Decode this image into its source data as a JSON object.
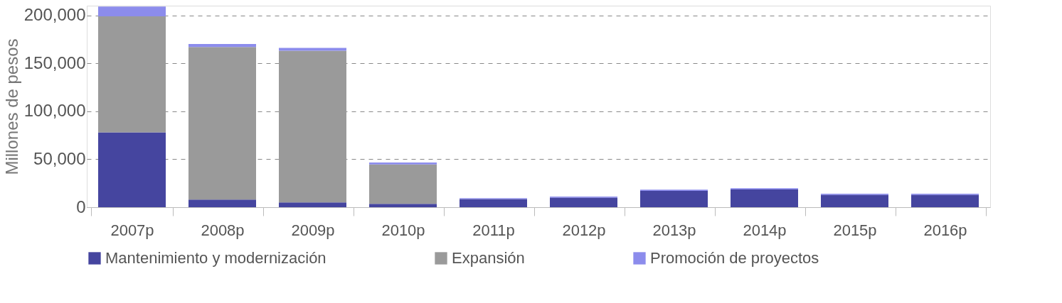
{
  "chart_data": {
    "type": "bar",
    "stacked": true,
    "ylabel": "Millones de pesos",
    "categories": [
      "2007p",
      "2008p",
      "2009p",
      "2010p",
      "2011p",
      "2012p",
      "2013p",
      "2014p",
      "2015p",
      "2016p"
    ],
    "series": [
      {
        "name": "Mantenimiento y modernización",
        "color": "#45459f",
        "values": [
          78000,
          8000,
          5000,
          3500,
          8500,
          10000,
          17000,
          18500,
          13000,
          13000
        ]
      },
      {
        "name": "Expansión",
        "color": "#9a9a9a",
        "values": [
          121000,
          159000,
          158000,
          41000,
          0,
          0,
          0,
          0,
          0,
          0
        ]
      },
      {
        "name": "Promoción de proyectos",
        "color": "#8c8cec",
        "values": [
          10000,
          3000,
          3000,
          2000,
          1000,
          1000,
          1300,
          1200,
          1000,
          1000
        ]
      }
    ],
    "ylim": [
      0,
      210000
    ],
    "yticks": [
      0,
      {
        "value": 50000,
        "label": "50,000"
      },
      {
        "value": 100000,
        "label": "100,000"
      },
      {
        "value": 150000,
        "label": "150,000"
      },
      {
        "value": 200000,
        "label": "200,000"
      }
    ],
    "grid": "y",
    "legend": "bottom"
  }
}
